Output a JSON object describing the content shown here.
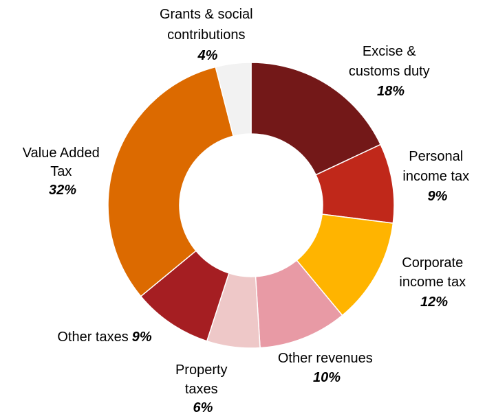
{
  "chart_data": {
    "type": "pie",
    "donut": true,
    "title": "",
    "unit": "%",
    "legend": "none",
    "slices": [
      {
        "label": "Excise & customs duty",
        "value": 18,
        "value_label": "18%",
        "color": "#731818"
      },
      {
        "label": "Personal income tax",
        "value": 9,
        "value_label": "9%",
        "color": "#c0281a"
      },
      {
        "label": "Corporate income tax",
        "value": 12,
        "value_label": "12%",
        "color": "#ffb400"
      },
      {
        "label": "Other revenues",
        "value": 10,
        "value_label": "10%",
        "color": "#e89aa5"
      },
      {
        "label": "Property taxes",
        "value": 6,
        "value_label": "6%",
        "color": "#eec8c8"
      },
      {
        "label": "Other taxes",
        "value": 9,
        "value_label": "9%",
        "color": "#a51e22"
      },
      {
        "label": "Value Added Tax",
        "value": 32,
        "value_label": "32%",
        "color": "#dc6a00"
      },
      {
        "label": "Grants & social contributions",
        "value": 4,
        "value_label": "4%",
        "color": "#f2f2f2"
      }
    ]
  }
}
